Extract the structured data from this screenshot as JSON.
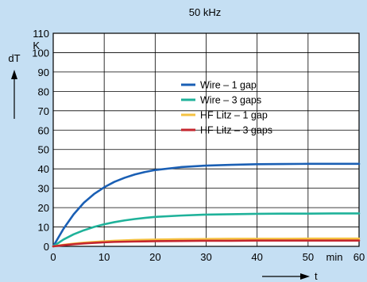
{
  "chart_data": {
    "type": "line",
    "title": "50 kHz",
    "ylabel": "dT",
    "yunit": "K",
    "xlabel": "t",
    "xunit": "min",
    "xlim": [
      0,
      60
    ],
    "ylim": [
      0,
      110
    ],
    "xticks": [
      0,
      10,
      20,
      30,
      40,
      50,
      60
    ],
    "yticks": [
      0,
      10,
      20,
      30,
      40,
      50,
      60,
      70,
      80,
      90,
      100,
      110
    ],
    "grid": true,
    "legend_position": "center-right",
    "x": [
      0,
      2,
      4,
      6,
      8,
      10,
      12,
      14,
      16,
      18,
      20,
      25,
      30,
      35,
      40,
      45,
      50,
      55,
      60
    ],
    "series": [
      {
        "name": "Wire – 1 gap",
        "color": "#1a5fb4",
        "values": [
          0,
          9,
          16.5,
          22.5,
          27,
          30.5,
          33.3,
          35.4,
          37.1,
          38.4,
          39.4,
          40.9,
          41.7,
          42.1,
          42.4,
          42.5,
          42.6,
          42.6,
          42.6
        ]
      },
      {
        "name": "Wire – 3 gaps",
        "color": "#1fb29a",
        "values": [
          0,
          3.5,
          6.2,
          8.3,
          10,
          11.4,
          12.5,
          13.4,
          14.1,
          14.7,
          15.2,
          15.9,
          16.4,
          16.6,
          16.8,
          16.9,
          16.9,
          17,
          17
        ]
      },
      {
        "name": "HF Litz – 1 gap",
        "color": "#f5c242",
        "values": [
          0,
          0.8,
          1.4,
          1.9,
          2.3,
          2.6,
          2.9,
          3.1,
          3.3,
          3.4,
          3.5,
          3.7,
          3.8,
          3.9,
          3.9,
          3.9,
          4,
          4,
          4
        ]
      },
      {
        "name": "HF Litz – 3 gaps",
        "color": "#c4262e",
        "values": [
          0,
          0.6,
          1.1,
          1.5,
          1.8,
          2.1,
          2.3,
          2.4,
          2.5,
          2.6,
          2.7,
          2.8,
          2.9,
          2.9,
          3,
          3,
          3,
          3,
          3
        ]
      }
    ]
  }
}
